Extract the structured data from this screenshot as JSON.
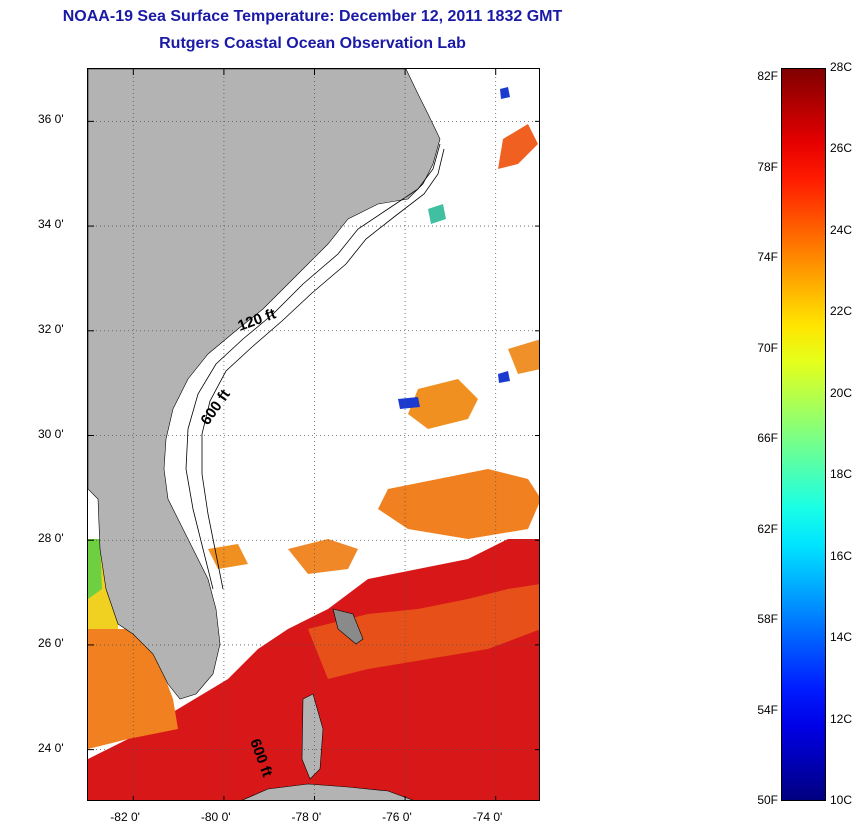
{
  "title_line1": "NOAA-19 Sea Surface Temperature:  December 12, 2011 1832 GMT",
  "title_line2": "Rutgers Coastal Ocean Observation Lab",
  "map": {
    "lon_range": [
      -83,
      -73
    ],
    "lat_range": [
      23,
      37
    ],
    "grid": "dotted",
    "lat_ticks": [
      {
        "value": 36,
        "label": "36 0'"
      },
      {
        "value": 34,
        "label": "34 0'"
      },
      {
        "value": 32,
        "label": "32 0'"
      },
      {
        "value": 30,
        "label": "30 0'"
      },
      {
        "value": 28,
        "label": "28 0'"
      },
      {
        "value": 26,
        "label": "26 0'"
      },
      {
        "value": 24,
        "label": "24 0'"
      }
    ],
    "lon_ticks": [
      {
        "value": -82,
        "label": "-82 0'"
      },
      {
        "value": -80,
        "label": "-80 0'"
      },
      {
        "value": -78,
        "label": "-78 0'"
      },
      {
        "value": -76,
        "label": "-76 0'"
      },
      {
        "value": -74,
        "label": "-74 0'"
      }
    ],
    "contour_labels": {
      "shelf_120": "120 ft",
      "shelf_600_north": "600 ft",
      "shelf_600_south": "600 ft"
    },
    "colors": {
      "land": "#b3b3b3",
      "ocean_no_data": "#ffffff",
      "warm_gulfstream": "#e8401a",
      "hot": "#d01010",
      "orange": "#f08020",
      "yellow": "#f0d020",
      "cold": "#1a3ad0"
    }
  },
  "colorbar": {
    "range_c": [
      10,
      28
    ],
    "fahrenheit_labels": [
      {
        "value_f": 82,
        "label": "82F"
      },
      {
        "value_f": 78,
        "label": "78F"
      },
      {
        "value_f": 74,
        "label": "74F"
      },
      {
        "value_f": 70,
        "label": "70F"
      },
      {
        "value_f": 66,
        "label": "66F"
      },
      {
        "value_f": 62,
        "label": "62F"
      },
      {
        "value_f": 58,
        "label": "58F"
      },
      {
        "value_f": 54,
        "label": "54F"
      },
      {
        "value_f": 50,
        "label": "50F"
      }
    ],
    "celsius_labels": [
      {
        "value_c": 28,
        "label": "28C"
      },
      {
        "value_c": 26,
        "label": "26C"
      },
      {
        "value_c": 24,
        "label": "24C"
      },
      {
        "value_c": 22,
        "label": "22C"
      },
      {
        "value_c": 20,
        "label": "20C"
      },
      {
        "value_c": 18,
        "label": "18C"
      },
      {
        "value_c": 16,
        "label": "16C"
      },
      {
        "value_c": 14,
        "label": "14C"
      },
      {
        "value_c": 12,
        "label": "12C"
      },
      {
        "value_c": 10,
        "label": "10C"
      }
    ],
    "colormap": "jet"
  }
}
